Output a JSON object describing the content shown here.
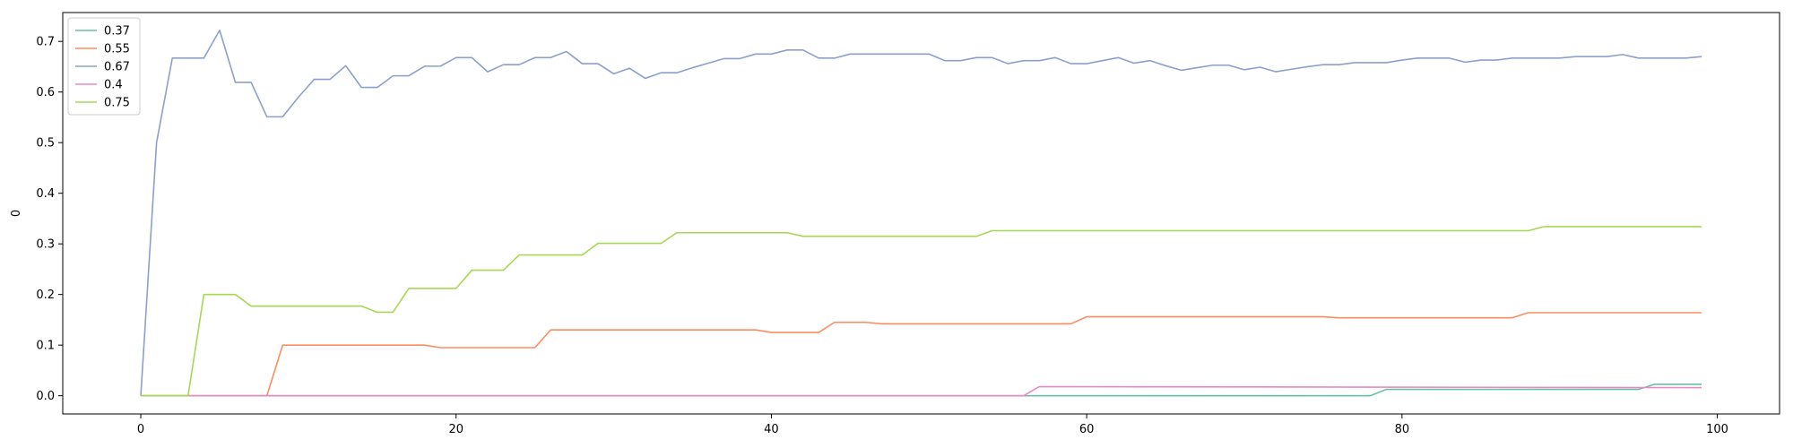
{
  "chart_data": {
    "type": "line",
    "title": "",
    "xlabel": "",
    "ylabel": "0",
    "xlim": [
      -4.95,
      103.95
    ],
    "ylim": [
      -0.036,
      0.757
    ],
    "xticks": [
      0,
      20,
      40,
      60,
      80,
      100
    ],
    "yticks": [
      0.0,
      0.1,
      0.2,
      0.3,
      0.4,
      0.5,
      0.6,
      0.7
    ],
    "grid": false,
    "legend": "top-left",
    "series": [
      {
        "name": "0.37",
        "color": "#66c2a5",
        "points": [
          [
            0,
            0
          ],
          [
            78,
            0
          ],
          [
            79,
            0.0125
          ],
          [
            95,
            0.0125
          ],
          [
            96,
            0.0225
          ],
          [
            99,
            0.0225
          ]
        ]
      },
      {
        "name": "0.55",
        "color": "#fc8d62",
        "points": [
          [
            0,
            0
          ],
          [
            8,
            0
          ],
          [
            9,
            0.1
          ],
          [
            18,
            0.1
          ],
          [
            19,
            0.095
          ],
          [
            25,
            0.095
          ],
          [
            26,
            0.13
          ],
          [
            39,
            0.13
          ],
          [
            40,
            0.125
          ],
          [
            43,
            0.125
          ],
          [
            44,
            0.145
          ],
          [
            46,
            0.145
          ],
          [
            47,
            0.142
          ],
          [
            59,
            0.142
          ],
          [
            60,
            0.156
          ],
          [
            75,
            0.156
          ],
          [
            76,
            0.154
          ],
          [
            87,
            0.154
          ],
          [
            88,
            0.164
          ],
          [
            99,
            0.164
          ]
        ]
      },
      {
        "name": "0.67",
        "color": "#8da0cb",
        "points": [
          [
            0,
            0
          ],
          [
            1,
            0.5
          ],
          [
            2,
            0.667
          ],
          [
            3,
            0.667
          ],
          [
            4,
            0.667
          ],
          [
            5,
            0.722
          ],
          [
            6,
            0.619
          ],
          [
            7,
            0.619
          ],
          [
            8,
            0.551
          ],
          [
            9,
            0.551
          ],
          [
            10,
            0.59
          ],
          [
            11,
            0.625
          ],
          [
            12,
            0.625
          ],
          [
            13,
            0.652
          ],
          [
            14,
            0.609
          ],
          [
            15,
            0.609
          ],
          [
            16,
            0.632
          ],
          [
            17,
            0.632
          ],
          [
            18,
            0.651
          ],
          [
            19,
            0.651
          ],
          [
            20,
            0.668
          ],
          [
            21,
            0.668
          ],
          [
            22,
            0.64
          ],
          [
            23,
            0.654
          ],
          [
            24,
            0.654
          ],
          [
            25,
            0.668
          ],
          [
            26,
            0.668
          ],
          [
            27,
            0.68
          ],
          [
            28,
            0.656
          ],
          [
            29,
            0.656
          ],
          [
            30,
            0.636
          ],
          [
            31,
            0.647
          ],
          [
            32,
            0.627
          ],
          [
            33,
            0.638
          ],
          [
            34,
            0.638
          ],
          [
            35,
            0.648
          ],
          [
            36,
            0.657
          ],
          [
            37,
            0.666
          ],
          [
            38,
            0.666
          ],
          [
            39,
            0.675
          ],
          [
            40,
            0.675
          ],
          [
            41,
            0.683
          ],
          [
            42,
            0.683
          ],
          [
            43,
            0.667
          ],
          [
            44,
            0.667
          ],
          [
            45,
            0.675
          ],
          [
            46,
            0.675
          ],
          [
            47,
            0.675
          ],
          [
            48,
            0.675
          ],
          [
            49,
            0.675
          ],
          [
            50,
            0.675
          ],
          [
            51,
            0.662
          ],
          [
            52,
            0.662
          ],
          [
            53,
            0.668
          ],
          [
            54,
            0.668
          ],
          [
            55,
            0.656
          ],
          [
            56,
            0.662
          ],
          [
            57,
            0.662
          ],
          [
            58,
            0.668
          ],
          [
            59,
            0.656
          ],
          [
            60,
            0.656
          ],
          [
            61,
            0.662
          ],
          [
            62,
            0.668
          ],
          [
            63,
            0.657
          ],
          [
            64,
            0.662
          ],
          [
            65,
            0.652
          ],
          [
            66,
            0.643
          ],
          [
            67,
            0.648
          ],
          [
            68,
            0.653
          ],
          [
            69,
            0.653
          ],
          [
            70,
            0.644
          ],
          [
            71,
            0.649
          ],
          [
            72,
            0.64
          ],
          [
            73,
            0.645
          ],
          [
            74,
            0.65
          ],
          [
            75,
            0.654
          ],
          [
            76,
            0.654
          ],
          [
            77,
            0.658
          ],
          [
            78,
            0.658
          ],
          [
            79,
            0.658
          ],
          [
            80,
            0.663
          ],
          [
            81,
            0.667
          ],
          [
            82,
            0.667
          ],
          [
            83,
            0.667
          ],
          [
            84,
            0.659
          ],
          [
            85,
            0.663
          ],
          [
            86,
            0.663
          ],
          [
            87,
            0.667
          ],
          [
            88,
            0.667
          ],
          [
            89,
            0.667
          ],
          [
            90,
            0.667
          ],
          [
            91,
            0.67
          ],
          [
            92,
            0.67
          ],
          [
            93,
            0.67
          ],
          [
            94,
            0.674
          ],
          [
            95,
            0.667
          ],
          [
            96,
            0.667
          ],
          [
            97,
            0.667
          ],
          [
            98,
            0.667
          ],
          [
            99,
            0.67
          ]
        ]
      },
      {
        "name": "0.4",
        "color": "#e78ac3",
        "points": [
          [
            0,
            0
          ],
          [
            56,
            0
          ],
          [
            57,
            0.018
          ],
          [
            99,
            0.016
          ]
        ]
      },
      {
        "name": "0.75",
        "color": "#a6d854",
        "points": [
          [
            0,
            0
          ],
          [
            3,
            0
          ],
          [
            4,
            0.2
          ],
          [
            6,
            0.2
          ],
          [
            7,
            0.177
          ],
          [
            14,
            0.177
          ],
          [
            15,
            0.165
          ],
          [
            16,
            0.165
          ],
          [
            17,
            0.212
          ],
          [
            20,
            0.212
          ],
          [
            21,
            0.248
          ],
          [
            23,
            0.248
          ],
          [
            24,
            0.278
          ],
          [
            28,
            0.278
          ],
          [
            29,
            0.301
          ],
          [
            33,
            0.301
          ],
          [
            34,
            0.322
          ],
          [
            41,
            0.322
          ],
          [
            42,
            0.315
          ],
          [
            53,
            0.315
          ],
          [
            54,
            0.326
          ],
          [
            88,
            0.326
          ],
          [
            89,
            0.334
          ],
          [
            99,
            0.334
          ]
        ]
      }
    ]
  }
}
